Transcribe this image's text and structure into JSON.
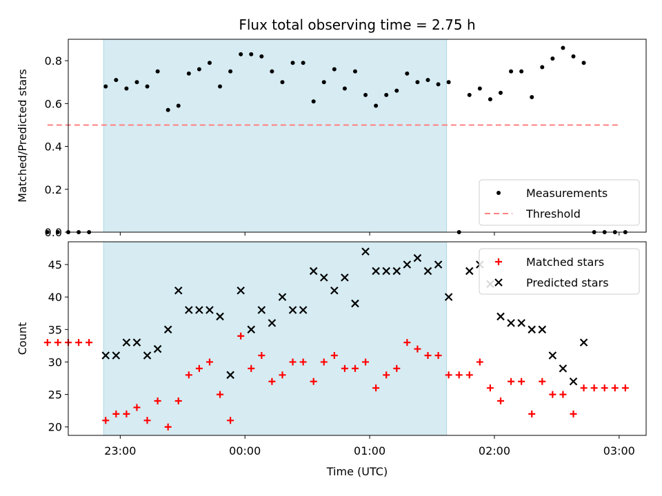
{
  "chart_data": {
    "title": "Flux total observing time = 2.75 h",
    "xlabel": "Time (UTC)",
    "xlim": [
      "22:35",
      "03:13"
    ],
    "x_ticks": [
      "23:00",
      "00:00",
      "01:00",
      "02:00",
      "03:00"
    ],
    "observing_window": [
      "22:52",
      "01:37"
    ],
    "colors": {
      "shade": "#add8e6",
      "measurements": "#000000",
      "threshold": "#ff7f7f",
      "matched": "#ff0000",
      "predicted": "#000000"
    },
    "panels": [
      {
        "type": "scatter",
        "ylabel": "Matched/Predicted stars",
        "ylim": [
          0,
          0.9
        ],
        "y_ticks": [
          "0.0",
          "0.2",
          "0.4",
          "0.6",
          "0.8"
        ],
        "legend_placement": "lower-right",
        "series": [
          {
            "name": "Measurements",
            "marker": "dot",
            "points": [
              [
                "22:25",
                0.0
              ],
              [
                "22:30",
                0.0
              ],
              [
                "22:35",
                0.0
              ],
              [
                "22:40",
                0.0
              ],
              [
                "22:45",
                0.0
              ],
              [
                "22:53",
                0.68
              ],
              [
                "22:58",
                0.71
              ],
              [
                "23:03",
                0.67
              ],
              [
                "23:08",
                0.7
              ],
              [
                "23:13",
                0.68
              ],
              [
                "23:18",
                0.75
              ],
              [
                "23:23",
                0.57
              ],
              [
                "23:28",
                0.59
              ],
              [
                "23:33",
                0.74
              ],
              [
                "23:38",
                0.76
              ],
              [
                "23:43",
                0.79
              ],
              [
                "23:48",
                0.68
              ],
              [
                "23:53",
                0.75
              ],
              [
                "23:58",
                0.83
              ],
              [
                "00:03",
                0.83
              ],
              [
                "00:08",
                0.82
              ],
              [
                "00:13",
                0.75
              ],
              [
                "00:18",
                0.7
              ],
              [
                "00:23",
                0.79
              ],
              [
                "00:28",
                0.79
              ],
              [
                "00:33",
                0.61
              ],
              [
                "00:38",
                0.7
              ],
              [
                "00:43",
                0.76
              ],
              [
                "00:48",
                0.67
              ],
              [
                "00:53",
                0.75
              ],
              [
                "00:58",
                0.64
              ],
              [
                "01:03",
                0.59
              ],
              [
                "01:08",
                0.64
              ],
              [
                "01:13",
                0.66
              ],
              [
                "01:18",
                0.74
              ],
              [
                "01:23",
                0.7
              ],
              [
                "01:28",
                0.71
              ],
              [
                "01:33",
                0.69
              ],
              [
                "01:38",
                0.7
              ],
              [
                "01:43",
                0.0
              ],
              [
                "01:48",
                0.64
              ],
              [
                "01:53",
                0.67
              ],
              [
                "01:58",
                0.62
              ],
              [
                "02:03",
                0.65
              ],
              [
                "02:08",
                0.75
              ],
              [
                "02:13",
                0.75
              ],
              [
                "02:18",
                0.63
              ],
              [
                "02:23",
                0.77
              ],
              [
                "02:28",
                0.81
              ],
              [
                "02:33",
                0.86
              ],
              [
                "02:38",
                0.82
              ],
              [
                "02:43",
                0.79
              ],
              [
                "02:48",
                0.0
              ],
              [
                "02:53",
                0.0
              ],
              [
                "02:58",
                0.0
              ],
              [
                "03:03",
                0.0
              ]
            ]
          },
          {
            "name": "Threshold",
            "marker": "dashed-line",
            "points": [
              [
                "22:25",
                0.5
              ],
              [
                "03:00",
                0.5
              ]
            ]
          }
        ]
      },
      {
        "type": "scatter",
        "ylabel": "Count",
        "ylim": [
          18.7,
          48.5
        ],
        "y_ticks": [
          "20",
          "25",
          "30",
          "35",
          "40",
          "45"
        ],
        "legend_placement": "upper-right",
        "series": [
          {
            "name": "Matched stars",
            "marker": "plus",
            "points": [
              [
                "22:25",
                33
              ],
              [
                "22:30",
                33
              ],
              [
                "22:35",
                33
              ],
              [
                "22:40",
                33
              ],
              [
                "22:45",
                33
              ],
              [
                "22:53",
                21
              ],
              [
                "22:58",
                22
              ],
              [
                "23:03",
                22
              ],
              [
                "23:08",
                23
              ],
              [
                "23:13",
                21
              ],
              [
                "23:18",
                24
              ],
              [
                "23:23",
                20
              ],
              [
                "23:28",
                24
              ],
              [
                "23:33",
                28
              ],
              [
                "23:38",
                29
              ],
              [
                "23:43",
                30
              ],
              [
                "23:48",
                25
              ],
              [
                "23:53",
                21
              ],
              [
                "23:58",
                34
              ],
              [
                "00:03",
                29
              ],
              [
                "00:08",
                31
              ],
              [
                "00:13",
                27
              ],
              [
                "00:18",
                28
              ],
              [
                "00:23",
                30
              ],
              [
                "00:28",
                30
              ],
              [
                "00:33",
                27
              ],
              [
                "00:38",
                30
              ],
              [
                "00:43",
                31
              ],
              [
                "00:48",
                29
              ],
              [
                "00:53",
                29
              ],
              [
                "00:58",
                30
              ],
              [
                "01:03",
                26
              ],
              [
                "01:08",
                28
              ],
              [
                "01:13",
                29
              ],
              [
                "01:18",
                33
              ],
              [
                "01:23",
                32
              ],
              [
                "01:28",
                31
              ],
              [
                "01:33",
                31
              ],
              [
                "01:38",
                28
              ],
              [
                "01:43",
                28
              ],
              [
                "01:48",
                28
              ],
              [
                "01:53",
                30
              ],
              [
                "01:58",
                26
              ],
              [
                "02:03",
                24
              ],
              [
                "02:08",
                27
              ],
              [
                "02:13",
                27
              ],
              [
                "02:18",
                22
              ],
              [
                "02:23",
                27
              ],
              [
                "02:28",
                25
              ],
              [
                "02:33",
                25
              ],
              [
                "02:38",
                22
              ],
              [
                "02:43",
                26
              ],
              [
                "02:48",
                26
              ],
              [
                "02:53",
                26
              ],
              [
                "02:58",
                26
              ],
              [
                "03:03",
                26
              ]
            ]
          },
          {
            "name": "Predicted stars",
            "marker": "x",
            "points": [
              [
                "22:53",
                31
              ],
              [
                "22:58",
                31
              ],
              [
                "23:03",
                33
              ],
              [
                "23:08",
                33
              ],
              [
                "23:13",
                31
              ],
              [
                "23:18",
                32
              ],
              [
                "23:23",
                35
              ],
              [
                "23:28",
                41
              ],
              [
                "23:33",
                38
              ],
              [
                "23:38",
                38
              ],
              [
                "23:43",
                38
              ],
              [
                "23:48",
                37
              ],
              [
                "23:53",
                28
              ],
              [
                "23:58",
                41
              ],
              [
                "00:03",
                35
              ],
              [
                "00:08",
                38
              ],
              [
                "00:13",
                36
              ],
              [
                "00:18",
                40
              ],
              [
                "00:23",
                38
              ],
              [
                "00:28",
                38
              ],
              [
                "00:33",
                44
              ],
              [
                "00:38",
                43
              ],
              [
                "00:43",
                41
              ],
              [
                "00:48",
                43
              ],
              [
                "00:53",
                39
              ],
              [
                "00:58",
                47
              ],
              [
                "01:03",
                44
              ],
              [
                "01:08",
                44
              ],
              [
                "01:13",
                44
              ],
              [
                "01:18",
                45
              ],
              [
                "01:23",
                46
              ],
              [
                "01:28",
                44
              ],
              [
                "01:33",
                45
              ],
              [
                "01:38",
                40
              ],
              [
                "01:48",
                44
              ],
              [
                "01:53",
                45
              ],
              [
                "01:58",
                42
              ],
              [
                "02:03",
                37
              ],
              [
                "02:08",
                36
              ],
              [
                "02:13",
                36
              ],
              [
                "02:18",
                35
              ],
              [
                "02:23",
                35
              ],
              [
                "02:28",
                31
              ],
              [
                "02:33",
                29
              ],
              [
                "02:38",
                27
              ],
              [
                "02:43",
                33
              ]
            ]
          }
        ]
      }
    ]
  }
}
